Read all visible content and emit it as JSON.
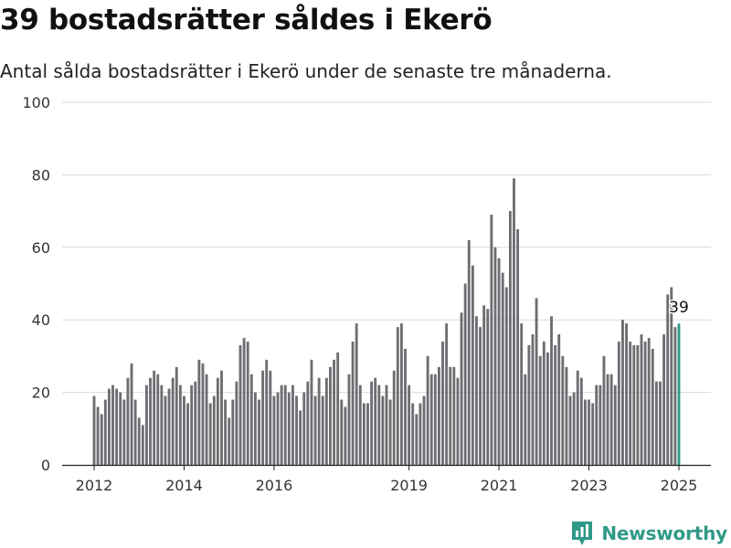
{
  "header": {
    "title": "39 bostadsrätter såldes i Ekerö",
    "subtitle": "Antal sålda bostadsrätter i Ekerö under de senaste tre månaderna."
  },
  "brand": {
    "name": "Newsworthy",
    "color": "#2f9987",
    "icon": "newsworthy-logo-icon"
  },
  "chart_data": {
    "type": "bar",
    "ylim": [
      0,
      100
    ],
    "yticks": [
      0,
      20,
      40,
      60,
      80,
      100
    ],
    "x_tick_labels": [
      "2012",
      "2014",
      "2016",
      "2019",
      "2021",
      "2023",
      "2025"
    ],
    "x_tick_index": [
      0,
      24,
      48,
      84,
      108,
      132,
      156
    ],
    "grid": true,
    "bar_color": "#6e6d72",
    "highlight_color": "#2f9987",
    "highlight_label": "39",
    "values": [
      19,
      16,
      14,
      18,
      21,
      22,
      21,
      20,
      18,
      24,
      28,
      18,
      13,
      11,
      22,
      24,
      26,
      25,
      22,
      19,
      21,
      24,
      27,
      22,
      19,
      17,
      22,
      23,
      29,
      28,
      25,
      17,
      19,
      24,
      26,
      18,
      13,
      18,
      23,
      33,
      35,
      34,
      25,
      20,
      18,
      26,
      29,
      26,
      19,
      20,
      22,
      22,
      20,
      22,
      19,
      15,
      20,
      23,
      29,
      19,
      24,
      19,
      24,
      27,
      29,
      31,
      18,
      16,
      25,
      34,
      39,
      22,
      17,
      17,
      23,
      24,
      22,
      19,
      22,
      18,
      26,
      38,
      39,
      32,
      22,
      17,
      14,
      17,
      19,
      30,
      25,
      25,
      27,
      34,
      39,
      27,
      27,
      24,
      42,
      50,
      62,
      55,
      41,
      38,
      44,
      43,
      69,
      60,
      57,
      53,
      49,
      70,
      79,
      65,
      39,
      25,
      33,
      36,
      46,
      30,
      34,
      31,
      41,
      33,
      36,
      30,
      27,
      19,
      20,
      26,
      24,
      18,
      18,
      17,
      22,
      22,
      30,
      25,
      25,
      22,
      34,
      40,
      39,
      34,
      33,
      33,
      36,
      34,
      35,
      32,
      23,
      23,
      36,
      47,
      49,
      38,
      39
    ]
  }
}
